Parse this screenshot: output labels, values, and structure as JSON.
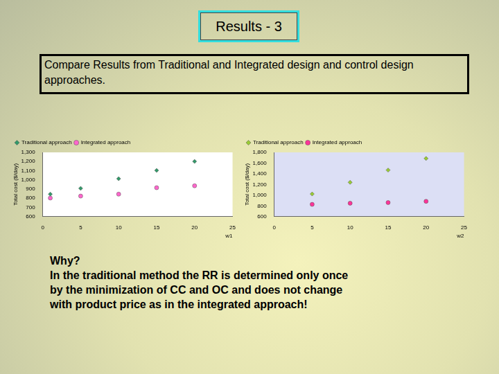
{
  "slide": {
    "title": "Results - 3",
    "subtitle": "Compare Results from Traditional and Integrated design and control design approaches.",
    "notes": [
      "Why?",
      "In the traditional method the RR is determined only once",
      "by the minimization of CC and OC and does not change",
      "with product price as in the integrated approach!"
    ]
  },
  "chart_data": [
    {
      "type": "scatter",
      "x_label": "w1",
      "y_label": "Total cost ($/day)",
      "xlim": [
        0,
        25
      ],
      "xticks": [
        0,
        5,
        10,
        15,
        20,
        25
      ],
      "ylim": [
        600,
        1300
      ],
      "yticks": [
        600,
        700,
        800,
        900,
        1000,
        1100,
        1200,
        1300
      ],
      "grid": false,
      "legend": "upper left",
      "series": [
        {
          "name": "Traditional approach",
          "color": "#33996a",
          "marker": "diamond",
          "x": [
            1,
            5,
            10,
            15,
            20
          ],
          "values": [
            845,
            908,
            1013,
            1103,
            1201
          ]
        },
        {
          "name": "Integrated approach",
          "color": "#ff66cc",
          "marker": "circle",
          "x": [
            1,
            5,
            10,
            15,
            20
          ],
          "values": [
            803,
            824,
            845,
            915,
            936
          ]
        }
      ]
    },
    {
      "type": "scatter",
      "x_label": "w2",
      "y_label": "Total cost ($/day)",
      "xlim": [
        0,
        25
      ],
      "xticks": [
        0,
        5,
        10,
        15,
        20,
        25
      ],
      "ylim": [
        600,
        1800
      ],
      "yticks": [
        600,
        800,
        1000,
        1200,
        1400,
        1600,
        1800
      ],
      "grid": false,
      "legend": "upper left",
      "series": [
        {
          "name": "Traditional approach",
          "color": "#99cc33",
          "marker": "diamond",
          "x": [
            5,
            10,
            15,
            20
          ],
          "values": [
            1023,
            1240,
            1469,
            1686
          ]
        },
        {
          "name": "Integrated approach",
          "color": "#ff3399",
          "marker": "circle",
          "x": [
            5,
            10,
            15,
            20
          ],
          "values": [
            829,
            851,
            863,
            886
          ]
        }
      ]
    }
  ]
}
